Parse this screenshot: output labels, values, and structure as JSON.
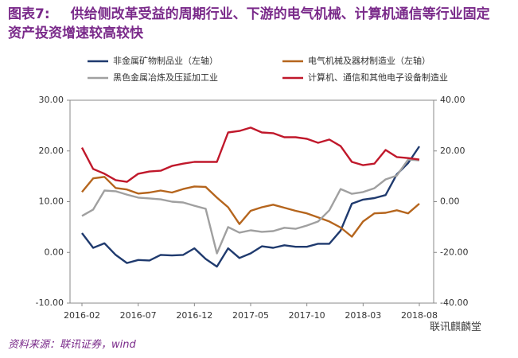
{
  "chart_data": {
    "type": "line",
    "label": "图表7:",
    "title": "供给侧改革受益的周期行业、下游的电气机械、计算机通信等行业固定资产投资增速较高较快",
    "source": "资料来源：联讯证券，wind",
    "watermark": "联讯麒麟堂",
    "categories": [
      "2016-02",
      null,
      null,
      null,
      null,
      "2016-07",
      null,
      null,
      null,
      null,
      "2016-12",
      null,
      null,
      null,
      null,
      "2017-05",
      null,
      null,
      null,
      null,
      "2017-10",
      null,
      null,
      null,
      null,
      "2018-03",
      null,
      null,
      null,
      null,
      "2018-08"
    ],
    "ylim": [
      -10,
      30
    ],
    "yticks": [
      {
        "value": 30,
        "label": "30.00"
      },
      {
        "value": 20,
        "label": "20.00"
      },
      {
        "value": 10,
        "label": "10.00"
      },
      {
        "value": 0,
        "label": "0.00"
      },
      {
        "value": -10,
        "label": "-10.00"
      }
    ],
    "y2lim": [
      -40,
      40
    ],
    "y2ticks": [
      {
        "value": 40,
        "label": "40.00"
      },
      {
        "value": 20,
        "label": "20.00"
      },
      {
        "value": 0,
        "label": "0.00"
      },
      {
        "value": -20,
        "label": "-20.00"
      },
      {
        "value": -40,
        "label": "-40.00"
      }
    ],
    "grid": false,
    "series": [
      {
        "name": "非金属矿物制品业（左轴）",
        "color": "#1f3a6e",
        "axis": "y",
        "values": [
          3.8,
          0.9,
          1.8,
          -0.5,
          -2.1,
          -1.5,
          -1.6,
          -0.5,
          -0.6,
          -0.5,
          0.8,
          -1.3,
          -2.8,
          0.8,
          -1.1,
          -0.2,
          1.2,
          0.9,
          1.4,
          1.1,
          1.1,
          1.7,
          1.7,
          4.3,
          9.6,
          10.4,
          10.7,
          11.3,
          15.4,
          17.6,
          20.9
        ]
      },
      {
        "name": "电气机械及器材制造业（左轴）",
        "color": "#b5651d",
        "axis": "y",
        "values": [
          11.9,
          14.6,
          14.9,
          12.7,
          12.4,
          11.6,
          11.8,
          12.2,
          11.8,
          12.5,
          13.0,
          12.9,
          10.8,
          8.9,
          5.6,
          8.2,
          8.9,
          9.4,
          8.8,
          8.2,
          7.7,
          6.9,
          6.1,
          4.9,
          3.1,
          6.1,
          7.7,
          7.8,
          8.3,
          7.7,
          9.6
        ]
      },
      {
        "name": "黑色金属冶炼及压延加工业",
        "color": "#a0a0a0",
        "axis": "y2",
        "values": [
          -5.6,
          -3.1,
          4.4,
          4.1,
          2.8,
          1.6,
          1.3,
          0.9,
          0,
          -0.3,
          -1.6,
          -2.8,
          -20.4,
          -10.0,
          -12.2,
          -11.3,
          -11.9,
          -11.6,
          -10.3,
          -10.7,
          -9.4,
          -7.8,
          -3.4,
          5.0,
          3.1,
          3.8,
          5.3,
          8.8,
          10.3,
          16.6,
          16.3
        ]
      },
      {
        "name": "计算机、通信和其他电子设备制造业",
        "color": "#c0182b",
        "axis": "y2",
        "values": [
          21.3,
          12.9,
          11.0,
          8.5,
          7.8,
          11.0,
          11.9,
          12.2,
          14.1,
          15.0,
          15.7,
          15.7,
          15.7,
          27.3,
          27.9,
          29.2,
          27.3,
          27.0,
          25.4,
          25.4,
          24.8,
          23.2,
          24.5,
          21.9,
          15.7,
          14.4,
          15.0,
          20.4,
          17.6,
          17.2,
          16.6
        ]
      }
    ]
  }
}
